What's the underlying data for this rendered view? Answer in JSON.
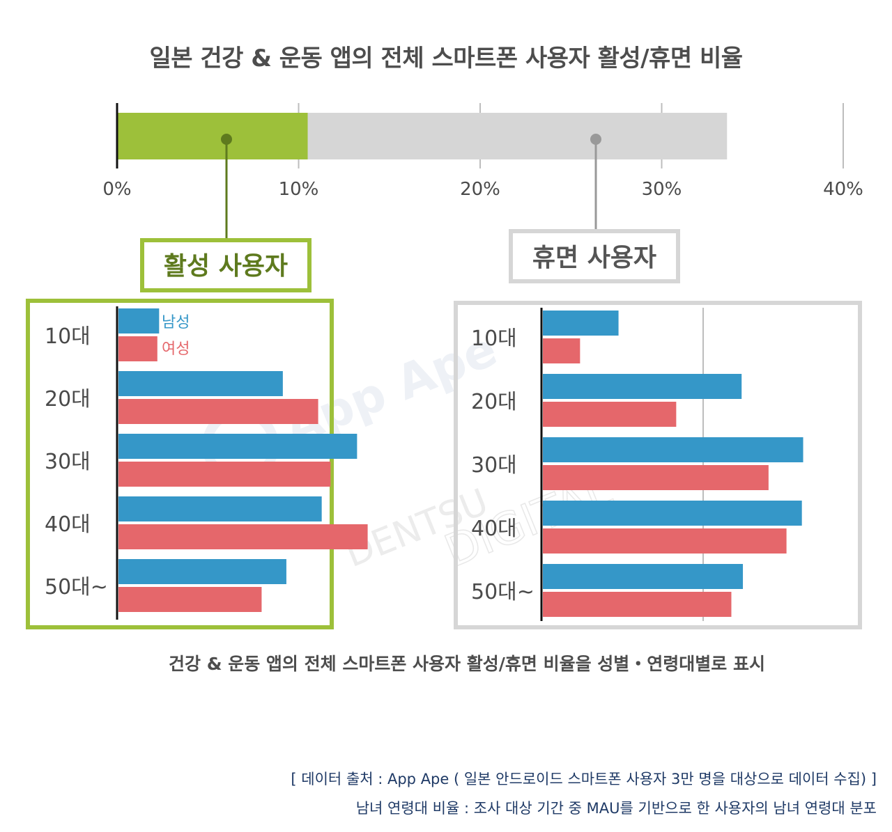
{
  "title": "일본 건강 & 운동 앱의 전체 스마트폰 사용자 활성/휴면 비율",
  "caption": "건강 & 운동 앱의 전체 스마트폰 사용자 활성/휴면 비율을 성별・연령대별로 표시",
  "source_line1": "[ 데이터 출처 : App Ape ( 일본 안드로이드 스마트폰 사용자 3만 명을 대상으로 데이터 수집) ]",
  "source_line2": "남녀 연령대 비율 : 조사 대상 기간 중 MAU를 기반으로 한 사용자의 남녀 연령대 분포",
  "watermark": [
    "App Ape",
    "DENTSU",
    "DIGITAL"
  ],
  "colors": {
    "active": "#9dc03a",
    "active_dark": "#5e7a1e",
    "dormant": "#d6d6d6",
    "dormant_dark": "#999999",
    "male": "#3597c8",
    "female": "#e5676b"
  },
  "chart_data": [
    {
      "type": "bar",
      "orientation": "horizontal-stacked",
      "title": "일본 건강 & 운동 앱의 전체 스마트폰 사용자 활성/휴면 비율",
      "x_ticks": [
        "0%",
        "10%",
        "20%",
        "30%",
        "40%"
      ],
      "xlim": [
        0,
        40
      ],
      "segments": [
        {
          "name": "활성 사용자",
          "value": 10.5
        },
        {
          "name": "휴면 사용자",
          "value": 23.1
        }
      ]
    },
    {
      "type": "bar",
      "orientation": "horizontal",
      "title": "활성 사용자",
      "categories": [
        "10대",
        "20대",
        "30대",
        "40대",
        "50대~"
      ],
      "legend": [
        "남성",
        "여성"
      ],
      "series": [
        {
          "name": "남성",
          "values": [
            2.3,
            9.3,
            13.5,
            11.5,
            9.5
          ]
        },
        {
          "name": "여성",
          "values": [
            2.2,
            11.3,
            12.0,
            14.1,
            8.1
          ]
        }
      ],
      "xlim": [
        0,
        18
      ]
    },
    {
      "type": "bar",
      "orientation": "horizontal",
      "title": "휴면 사용자",
      "categories": [
        "10대",
        "20대",
        "30대",
        "40대",
        "50대~"
      ],
      "series": [
        {
          "name": "남성",
          "values": [
            5.9,
            15.5,
            20.3,
            20.2,
            15.6
          ]
        },
        {
          "name": "여성",
          "values": [
            2.9,
            10.4,
            17.6,
            19.0,
            14.7
          ]
        }
      ],
      "xlim": [
        0,
        24
      ],
      "gridline": 12.5
    }
  ]
}
